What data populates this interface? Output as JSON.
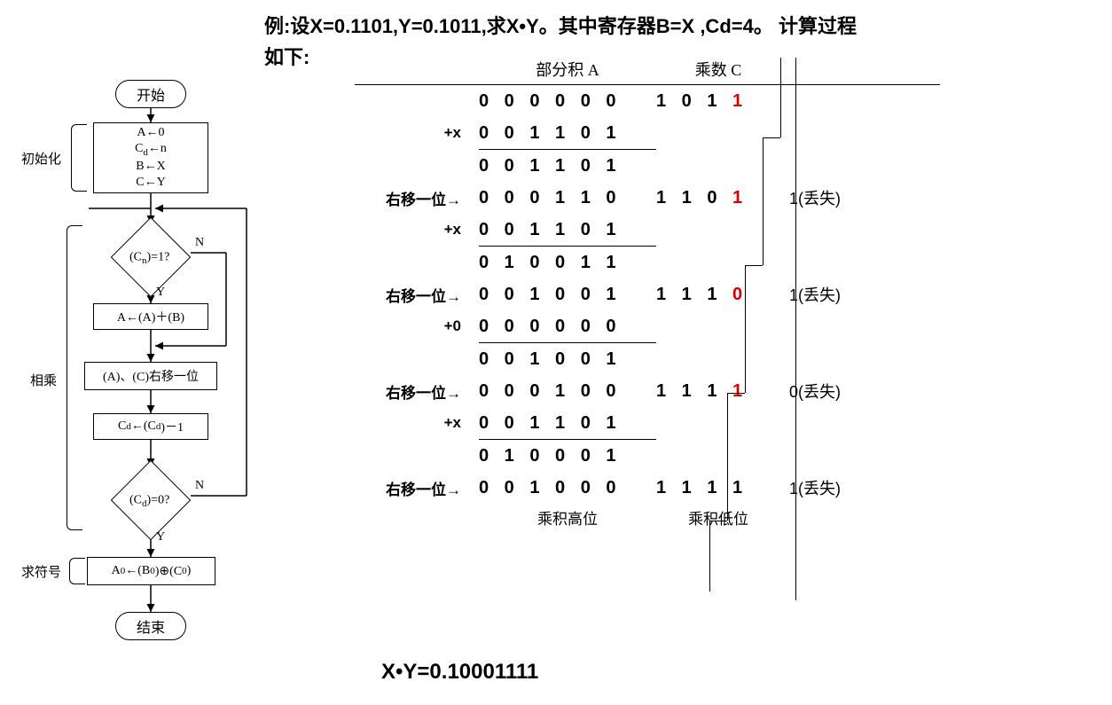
{
  "title_line1": "例:设X=0.1101,Y=0.1011,求X•Y。其中寄存器B=X ,Cd=4。 计算过程",
  "title_line2": "如下:",
  "flowchart": {
    "start": "开始",
    "init1": "A←0",
    "init2": "C",
    "init2sub": "d",
    "init2b": "←n",
    "init3": "B←X",
    "init4": "C←Y",
    "cond1a": "(C",
    "cond1sub": "n",
    "cond1b": ")=1?",
    "add": "A←(A)＋(B)",
    "shift": "(A)、(C)右移一位",
    "dec1": "C",
    "dec1sub": "d",
    "dec2": "←(C",
    "dec2sub": "d",
    "dec3": ")－1",
    "cond2a": "(C",
    "cond2sub": "d",
    "cond2b": ")=0?",
    "sign1": "A",
    "sign1sub": " 0",
    "sign2": "←(B",
    "sign2sub": "0",
    "sign3": ")⊕(C",
    "sign3sub": " 0",
    "sign4": ")",
    "end": "结束",
    "brace1": "初始化",
    "brace2": "相乘",
    "brace3": "求符号",
    "Y": "Y",
    "N": "N"
  },
  "table": {
    "header_a": "部分积  A",
    "header_c": "乘数  C",
    "rows": [
      {
        "op": "",
        "a": "0 0  0 0 0 0",
        "c": "1 0 1 ",
        "c_red": "1",
        "lost": ""
      },
      {
        "op": "+x",
        "a": "0 0  1 1 0 1",
        "c": "",
        "lost": ""
      },
      {
        "hr": true
      },
      {
        "op": "",
        "a": "0 0  1 1 0 1",
        "c": "",
        "lost": ""
      },
      {
        "op": "右移一位→",
        "a": "0 0  0 1 1 0",
        "c": "1 ",
        "c_black2": "1 0 ",
        "c_red": "1",
        "lost": "1(丢失)",
        "step": 1
      },
      {
        "op": "+x",
        "a": "0 0  1 1 0 1",
        "c": "",
        "lost": ""
      },
      {
        "hr": true
      },
      {
        "op": "",
        "a": "0 1  0 0 1 1",
        "c": "",
        "lost": ""
      },
      {
        "op": "右移一位→",
        "a": "0 0  1 0 0 1",
        "c": "1 1 ",
        "c_black2": "1 ",
        "c_red": "0",
        "lost": "1(丢失)",
        "step": 2
      },
      {
        "op": "+0",
        "a": "0 0  0 0 0 0",
        "c": "",
        "lost": ""
      },
      {
        "hr": true
      },
      {
        "op": "",
        "a": "0 0  1 0 0 1",
        "c": "",
        "lost": ""
      },
      {
        "op": "右移一位→",
        "a": "0 0  0 1 0 0",
        "c": "1 1 1 ",
        "c_red": "1",
        "lost": "0(丢失)",
        "step": 3
      },
      {
        "op": "+x",
        "a": "0 0  1 1 0 1",
        "c": "",
        "lost": ""
      },
      {
        "hr": true
      },
      {
        "op": "",
        "a": "0 1  0 0 0 1",
        "c": "",
        "lost": ""
      },
      {
        "op": "右移一位→",
        "a": "0 0  1 0 0 0",
        "c": "1 1 1 1",
        "lost": "1(丢失)",
        "step": 4
      }
    ],
    "footer_a": "乘积高位",
    "footer_c": "乘积低位"
  },
  "result": "X•Y=0.10001111"
}
